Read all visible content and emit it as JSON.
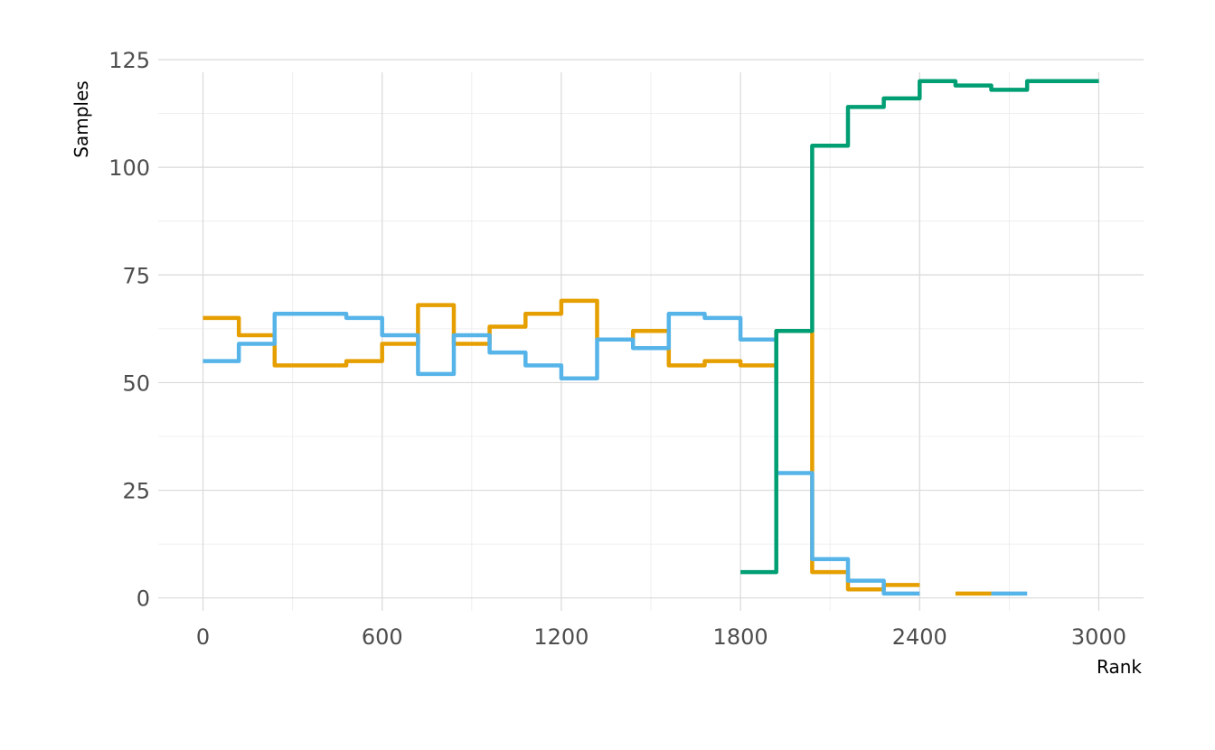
{
  "chart_data": {
    "type": "line",
    "title": "",
    "xlabel": "Rank",
    "ylabel": "Samples",
    "xlim": [
      -150,
      3150
    ],
    "ylim": [
      -3,
      125
    ],
    "x_ticks": [
      0,
      600,
      1200,
      1800,
      2400,
      3000
    ],
    "y_ticks": [
      0,
      25,
      50,
      75,
      100,
      125
    ],
    "x_minor_ticks": [
      300,
      900,
      1500,
      2100,
      2700
    ],
    "y_minor_ticks": [
      12.5,
      37.5,
      62.5,
      87.5,
      112.5
    ],
    "grid": true,
    "legend": "none",
    "step": true,
    "series": [
      {
        "color": "#E69F00",
        "values": [
          [
            0,
            65
          ],
          [
            120,
            61
          ],
          [
            240,
            54
          ],
          [
            360,
            54
          ],
          [
            480,
            55
          ],
          [
            600,
            59
          ],
          [
            720,
            68
          ],
          [
            840,
            59
          ],
          [
            960,
            63
          ],
          [
            1080,
            66
          ],
          [
            1200,
            69
          ],
          [
            1320,
            60
          ],
          [
            1440,
            62
          ],
          [
            1560,
            54
          ],
          [
            1680,
            55
          ],
          [
            1800,
            54
          ],
          [
            1920,
            62
          ],
          [
            2040,
            6
          ],
          [
            2160,
            2
          ],
          [
            2280,
            3
          ],
          [
            2400,
            null
          ],
          [
            2520,
            1
          ],
          [
            2640,
            null
          ]
        ]
      },
      {
        "color": "#56B4E9",
        "values": [
          [
            0,
            55
          ],
          [
            120,
            59
          ],
          [
            240,
            66
          ],
          [
            360,
            66
          ],
          [
            480,
            65
          ],
          [
            600,
            61
          ],
          [
            720,
            52
          ],
          [
            840,
            61
          ],
          [
            960,
            57
          ],
          [
            1080,
            54
          ],
          [
            1200,
            51
          ],
          [
            1320,
            60
          ],
          [
            1440,
            58
          ],
          [
            1560,
            66
          ],
          [
            1680,
            65
          ],
          [
            1800,
            60
          ],
          [
            1920,
            29
          ],
          [
            2040,
            9
          ],
          [
            2160,
            4
          ],
          [
            2280,
            1
          ],
          [
            2400,
            null
          ],
          [
            2520,
            null
          ],
          [
            2640,
            1
          ],
          [
            2760,
            null
          ]
        ]
      },
      {
        "color": "#009E73",
        "values": [
          [
            1800,
            6
          ],
          [
            1920,
            62
          ],
          [
            2040,
            105
          ],
          [
            2160,
            114
          ],
          [
            2280,
            116
          ],
          [
            2400,
            120
          ],
          [
            2520,
            119
          ],
          [
            2640,
            118
          ],
          [
            2760,
            120
          ],
          [
            3000,
            120
          ]
        ]
      }
    ]
  }
}
